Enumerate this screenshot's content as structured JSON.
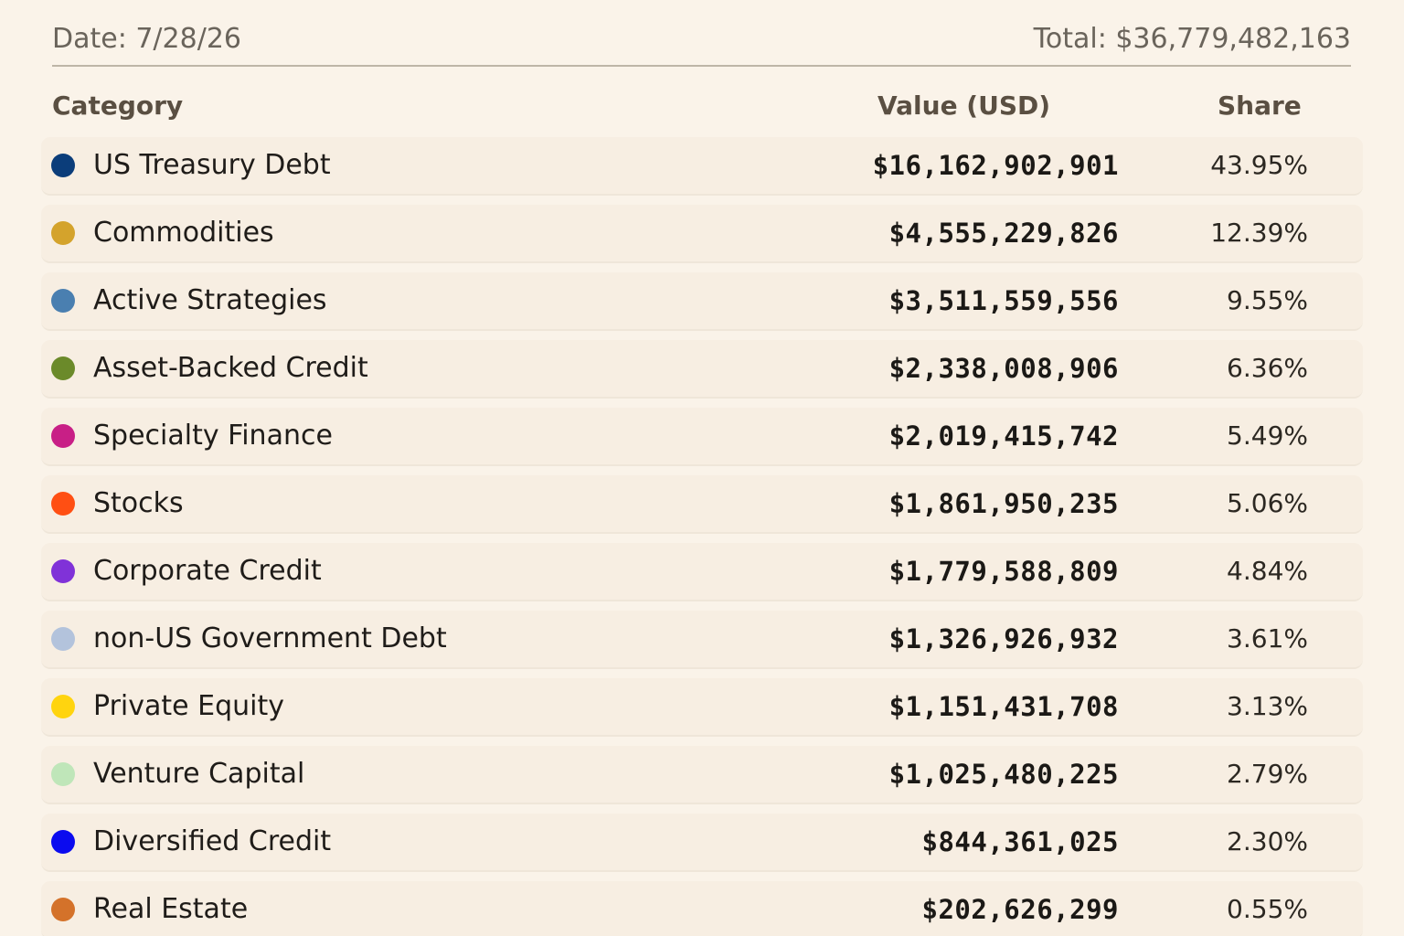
{
  "header": {
    "date": "Date: 7/28/26",
    "total": "Total: $36,779,482,163"
  },
  "columns": {
    "category": "Category",
    "value": "Value (USD)",
    "share": "Share"
  },
  "rows": [
    {
      "category": "US Treasury Debt",
      "value": "$16,162,902,901",
      "share": "43.95%",
      "color": "#0b3d7a"
    },
    {
      "category": "Commodities",
      "value": "$4,555,229,826",
      "share": "12.39%",
      "color": "#d4a32c"
    },
    {
      "category": "Active Strategies",
      "value": "$3,511,559,556",
      "share": "9.55%",
      "color": "#4a7fb0"
    },
    {
      "category": "Asset-Backed Credit",
      "value": "$2,338,008,906",
      "share": "6.36%",
      "color": "#6b8a2a"
    },
    {
      "category": "Specialty Finance",
      "value": "$2,019,415,742",
      "share": "5.49%",
      "color": "#c81f86"
    },
    {
      "category": "Stocks",
      "value": "$1,861,950,235",
      "share": "5.06%",
      "color": "#ff4f13"
    },
    {
      "category": "Corporate Credit",
      "value": "$1,779,588,809",
      "share": "4.84%",
      "color": "#8032d8"
    },
    {
      "category": "non-US Government Debt",
      "value": "$1,326,926,932",
      "share": "3.61%",
      "color": "#b3c3dc"
    },
    {
      "category": "Private Equity",
      "value": "$1,151,431,708",
      "share": "3.13%",
      "color": "#ffd40f"
    },
    {
      "category": "Venture Capital",
      "value": "$1,025,480,225",
      "share": "2.79%",
      "color": "#bfe6b9"
    },
    {
      "category": "Diversified Credit",
      "value": "$844,361,025",
      "share": "2.30%",
      "color": "#0b0bef"
    },
    {
      "category": "Real Estate",
      "value": "$202,626,299",
      "share": "0.55%",
      "color": "#d4722a"
    }
  ]
}
